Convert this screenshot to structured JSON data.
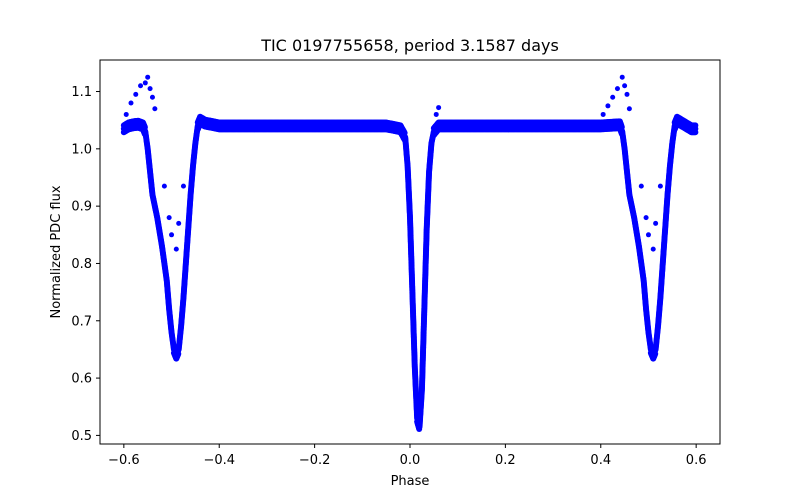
{
  "chart_data": {
    "type": "scatter",
    "title": "TIC 0197755658, period 3.1587 days",
    "xlabel": "Phase",
    "ylabel": "Normalized PDC flux",
    "xlim": [
      -0.65,
      0.65
    ],
    "ylim": [
      0.485,
      1.155
    ],
    "xticks": [
      -0.6,
      -0.4,
      -0.2,
      0.0,
      0.2,
      0.4,
      0.6
    ],
    "xtick_labels": [
      "−0.6",
      "−0.4",
      "−0.2",
      "0.0",
      "0.2",
      "0.4",
      "0.6"
    ],
    "yticks": [
      0.5,
      0.6,
      0.7,
      0.8,
      0.9,
      1.0,
      1.1
    ],
    "ytick_labels": [
      "0.5",
      "0.6",
      "0.7",
      "0.8",
      "0.9",
      "1.0",
      "1.1"
    ],
    "grid": false,
    "legend": "none",
    "series": [
      {
        "color": "#0000ff",
        "points": [
          [
            -0.6,
            1.035
          ],
          [
            -0.59,
            1.04
          ],
          [
            -0.58,
            1.042
          ],
          [
            -0.57,
            1.043
          ],
          [
            -0.56,
            1.04
          ],
          [
            -0.555,
            1.03
          ],
          [
            -0.55,
            1.0
          ],
          [
            -0.545,
            0.96
          ],
          [
            -0.54,
            0.92
          ],
          [
            -0.53,
            0.88
          ],
          [
            -0.52,
            0.83
          ],
          [
            -0.51,
            0.77
          ],
          [
            -0.505,
            0.72
          ],
          [
            -0.5,
            0.68
          ],
          [
            -0.495,
            0.65
          ],
          [
            -0.49,
            0.64
          ],
          [
            -0.485,
            0.65
          ],
          [
            -0.48,
            0.69
          ],
          [
            -0.475,
            0.74
          ],
          [
            -0.47,
            0.8
          ],
          [
            -0.465,
            0.86
          ],
          [
            -0.46,
            0.92
          ],
          [
            -0.455,
            0.97
          ],
          [
            -0.45,
            1.01
          ],
          [
            -0.445,
            1.04
          ],
          [
            -0.44,
            1.05
          ],
          [
            -0.43,
            1.045
          ],
          [
            -0.4,
            1.04
          ],
          [
            -0.35,
            1.04
          ],
          [
            -0.3,
            1.04
          ],
          [
            -0.25,
            1.04
          ],
          [
            -0.2,
            1.04
          ],
          [
            -0.15,
            1.04
          ],
          [
            -0.1,
            1.04
          ],
          [
            -0.05,
            1.04
          ],
          [
            -0.02,
            1.035
          ],
          [
            -0.01,
            1.02
          ],
          [
            -0.005,
            0.97
          ],
          [
            0.0,
            0.88
          ],
          [
            0.005,
            0.75
          ],
          [
            0.01,
            0.62
          ],
          [
            0.015,
            0.53
          ],
          [
            0.02,
            0.515
          ],
          [
            0.025,
            0.58
          ],
          [
            0.03,
            0.72
          ],
          [
            0.035,
            0.86
          ],
          [
            0.04,
            0.96
          ],
          [
            0.045,
            1.01
          ],
          [
            0.05,
            1.03
          ],
          [
            0.06,
            1.04
          ],
          [
            0.1,
            1.04
          ],
          [
            0.15,
            1.04
          ],
          [
            0.2,
            1.04
          ],
          [
            0.25,
            1.04
          ],
          [
            0.3,
            1.04
          ],
          [
            0.35,
            1.04
          ],
          [
            0.4,
            1.04
          ],
          [
            0.44,
            1.042
          ],
          [
            0.445,
            1.03
          ],
          [
            0.45,
            1.0
          ],
          [
            0.455,
            0.96
          ],
          [
            0.46,
            0.92
          ],
          [
            0.47,
            0.88
          ],
          [
            0.48,
            0.83
          ],
          [
            0.49,
            0.77
          ],
          [
            0.495,
            0.72
          ],
          [
            0.5,
            0.68
          ],
          [
            0.505,
            0.65
          ],
          [
            0.51,
            0.64
          ],
          [
            0.515,
            0.65
          ],
          [
            0.52,
            0.69
          ],
          [
            0.525,
            0.74
          ],
          [
            0.53,
            0.8
          ],
          [
            0.535,
            0.86
          ],
          [
            0.54,
            0.92
          ],
          [
            0.545,
            0.97
          ],
          [
            0.55,
            1.01
          ],
          [
            0.555,
            1.04
          ],
          [
            0.56,
            1.05
          ],
          [
            0.57,
            1.045
          ],
          [
            0.58,
            1.04
          ],
          [
            0.59,
            1.035
          ],
          [
            0.6,
            1.035
          ]
        ],
        "outliers": [
          [
            -0.595,
            1.06
          ],
          [
            -0.585,
            1.08
          ],
          [
            -0.575,
            1.095
          ],
          [
            -0.565,
            1.11
          ],
          [
            -0.555,
            1.115
          ],
          [
            -0.55,
            1.125
          ],
          [
            -0.545,
            1.105
          ],
          [
            -0.54,
            1.09
          ],
          [
            -0.535,
            1.07
          ],
          [
            -0.515,
            0.935
          ],
          [
            -0.505,
            0.88
          ],
          [
            -0.5,
            0.85
          ],
          [
            -0.49,
            0.825
          ],
          [
            -0.485,
            0.87
          ],
          [
            -0.475,
            0.935
          ],
          [
            0.405,
            1.06
          ],
          [
            0.415,
            1.075
          ],
          [
            0.425,
            1.09
          ],
          [
            0.435,
            1.105
          ],
          [
            0.445,
            1.125
          ],
          [
            0.45,
            1.11
          ],
          [
            0.455,
            1.095
          ],
          [
            0.46,
            1.07
          ],
          [
            0.485,
            0.935
          ],
          [
            0.495,
            0.88
          ],
          [
            0.5,
            0.85
          ],
          [
            0.51,
            0.825
          ],
          [
            0.515,
            0.87
          ],
          [
            0.525,
            0.935
          ],
          [
            0.06,
            1.072
          ],
          [
            0.055,
            1.06
          ]
        ]
      }
    ]
  }
}
